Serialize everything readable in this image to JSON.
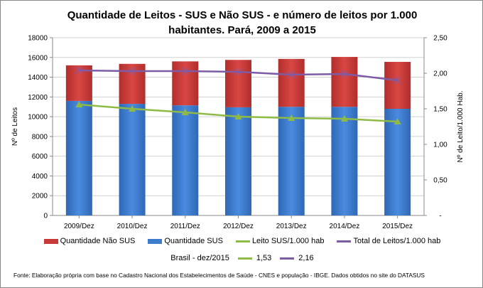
{
  "chart_data": {
    "type": "bar",
    "title": "Quantidade de Leitos - SUS e Não SUS - e número de leitos por 1.000 habitantes. Pará, 2009 a 2015",
    "title_lines": [
      "Quantidade de Leitos - SUS e Não SUS - e número de leitos por 1.000",
      "habitantes. Pará, 2009 a 2015"
    ],
    "categories": [
      "2009/Dez",
      "2010/Dez",
      "2011/Dez",
      "2012/Dez",
      "2013/Dez",
      "2014/Dez",
      "2015/Dez"
    ],
    "ylabel": "Nº de Leitos",
    "y2label": "Nº de Leito/1.000 Hab.",
    "ylim": [
      0,
      18000
    ],
    "y2lim": [
      0,
      2.5
    ],
    "yticks": [
      "0",
      "2000",
      "4000",
      "6000",
      "8000",
      "10000",
      "12000",
      "14000",
      "16000",
      "18000"
    ],
    "y2ticks": [
      "-",
      "0,50",
      "1,00",
      "1,50",
      "2,00",
      "2,50"
    ],
    "grid": true,
    "legend_position": "bottom",
    "series": [
      {
        "name": "Quantidade SUS",
        "kind": "stacked-bar",
        "axis": "left",
        "color": "#3d7ccc",
        "values": [
          11600,
          11300,
          11150,
          10950,
          11000,
          11000,
          10800
        ]
      },
      {
        "name": "Quantidade Não SUS",
        "kind": "stacked-bar",
        "axis": "left",
        "color": "#c83a38",
        "values": [
          3600,
          4050,
          4450,
          4800,
          4850,
          5050,
          4750
        ]
      },
      {
        "name": "Leito SUS/1.000 hab",
        "kind": "line",
        "marker": "triangle",
        "axis": "right",
        "color": "#8fba46",
        "values": [
          1.56,
          1.5,
          1.45,
          1.39,
          1.37,
          1.36,
          1.32
        ]
      },
      {
        "name": "Total de Leitos/1.000 hab",
        "kind": "line",
        "marker": "x",
        "axis": "right",
        "color": "#7d5ba6",
        "values": [
          2.04,
          2.03,
          2.03,
          2.02,
          1.98,
          1.99,
          1.9
        ]
      }
    ],
    "brasil_ref": {
      "label": "Brasil -  dez/2015",
      "sus": "1,53",
      "total": "2,16"
    },
    "source": "Fonte: Elaboração própria com base no  Cadastro Nacional dos Estabelecimentos de Saúde - CNES e população - IBGE. Dados obtidos no site do DATASUS"
  }
}
